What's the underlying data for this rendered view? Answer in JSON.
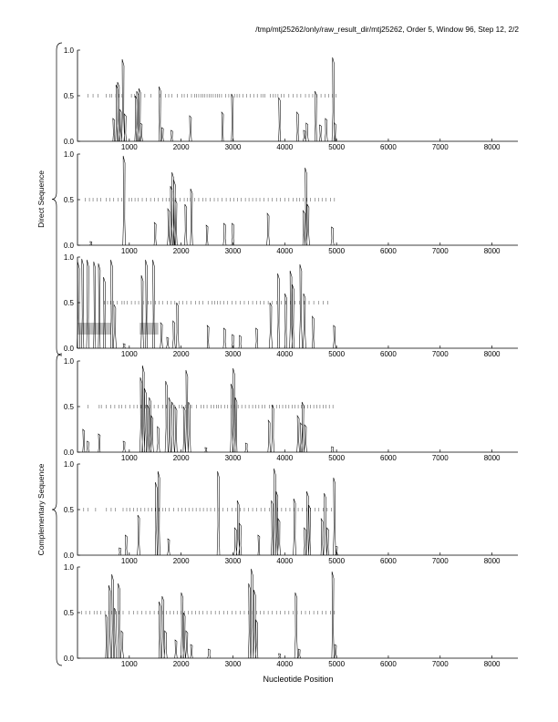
{
  "header": "/tmp/mtj25262/only/raw_result_dir/mtj25262, Order 5, Window 96, Step 12, 2/2",
  "xlabel": "Nucleotide Position",
  "groups": [
    {
      "label": "Direct Sequence",
      "panels": [
        0,
        1,
        2
      ]
    },
    {
      "label": "Complementary Sequence",
      "panels": [
        3,
        4,
        5
      ]
    }
  ],
  "chart_data": {
    "type": "line",
    "title": "/tmp/mtj25262/only/raw_result_dir/mtj25262, Order 5, Window 96, Step 12, 2/2",
    "xlabel": "Nucleotide Position",
    "ylabel": "",
    "xlim": [
      0,
      8500
    ],
    "ylim": [
      0,
      1
    ],
    "xticks": [
      1000,
      2000,
      3000,
      4000,
      5000,
      6000,
      7000,
      8000
    ],
    "yticks": [
      0.0,
      0.5,
      1.0
    ],
    "ytick_labels": [
      "0.0",
      "0.5",
      "1.0"
    ],
    "grid": false,
    "panels": [
      {
        "peaks": [
          [
            700,
            0.25
          ],
          [
            760,
            0.62
          ],
          [
            790,
            0.65
          ],
          [
            830,
            0.35
          ],
          [
            880,
            0.9
          ],
          [
            920,
            0.3
          ],
          [
            1130,
            0.5
          ],
          [
            1160,
            0.55
          ],
          [
            1200,
            0.58
          ],
          [
            1230,
            0.2
          ],
          [
            1590,
            0.6
          ],
          [
            1640,
            0.15
          ],
          [
            1820,
            0.12
          ],
          [
            2180,
            0.28
          ],
          [
            2800,
            0.32
          ],
          [
            2990,
            0.52
          ],
          [
            3900,
            0.48
          ],
          [
            4250,
            0.32
          ],
          [
            4380,
            0.12
          ],
          [
            4430,
            0.2
          ],
          [
            4600,
            0.55
          ],
          [
            4690,
            0.18
          ],
          [
            4800,
            0.25
          ],
          [
            4940,
            0.92
          ],
          [
            4970,
            0.2
          ]
        ],
        "dash_from": 0,
        "dash_to": 5000,
        "tick_marks": [
          200,
          300,
          400,
          550,
          620,
          660,
          740,
          800,
          860,
          1040,
          1100,
          1180,
          1300,
          1420,
          1600,
          1700,
          1760,
          1820,
          1930,
          2010,
          2060,
          2120,
          2200,
          2260,
          2300,
          2340,
          2380,
          2420,
          2460,
          2500,
          2540,
          2580,
          2620,
          2660,
          2700,
          2740,
          2780,
          2860,
          2920,
          2970,
          3030,
          3080,
          3130,
          3190,
          3260,
          3330,
          3400,
          3470,
          3540,
          3580,
          3620,
          3720,
          3780,
          3820,
          3870,
          3930,
          3990,
          4080,
          4160,
          4240,
          4310,
          4400,
          4470,
          4540,
          4620,
          4700,
          4780,
          4850,
          4920,
          4990
        ]
      },
      {
        "peaks": [
          [
            260,
            0.04
          ],
          [
            900,
            0.98
          ],
          [
            1500,
            0.25
          ],
          [
            1760,
            0.4
          ],
          [
            1810,
            0.65
          ],
          [
            1840,
            0.8
          ],
          [
            1870,
            0.72
          ],
          [
            1900,
            0.5
          ],
          [
            2090,
            0.45
          ],
          [
            2200,
            0.62
          ],
          [
            2500,
            0.22
          ],
          [
            2840,
            0.24
          ],
          [
            3000,
            0.24
          ],
          [
            3680,
            0.35
          ],
          [
            4370,
            0.38
          ],
          [
            4410,
            0.85
          ],
          [
            4450,
            0.45
          ],
          [
            4920,
            0.2
          ]
        ],
        "dash_from": 0,
        "dash_to": 5000,
        "tick_marks": [
          150,
          230,
          300,
          380,
          450,
          550,
          620,
          700,
          780,
          850,
          1000,
          1050,
          1110,
          1170,
          1250,
          1330,
          1410,
          1490,
          1560,
          1640,
          1710,
          1770,
          1830,
          1900,
          1980,
          2060,
          2120,
          2180,
          2260,
          2340,
          2420,
          2480,
          2560,
          2640,
          2710,
          2790,
          2870,
          2950,
          3020,
          3090,
          3160,
          3240,
          3310,
          3380,
          3450,
          3520,
          3600,
          3680,
          3760,
          3840,
          3920,
          4000,
          4080,
          4160,
          4230,
          4290,
          4360,
          4430,
          4500,
          4580,
          4650,
          4720,
          4800,
          4880,
          4960
        ]
      },
      {
        "peaks": [
          [
            20,
            0.95
          ],
          [
            100,
            0.98
          ],
          [
            200,
            0.97
          ],
          [
            330,
            0.95
          ],
          [
            420,
            0.93
          ],
          [
            520,
            0.78
          ],
          [
            660,
            0.97
          ],
          [
            720,
            0.48
          ],
          [
            900,
            0.05
          ],
          [
            1250,
            0.8
          ],
          [
            1330,
            0.97
          ],
          [
            1470,
            0.97
          ],
          [
            1620,
            0.28
          ],
          [
            1740,
            0.12
          ],
          [
            1860,
            0.3
          ],
          [
            1930,
            0.5
          ],
          [
            2520,
            0.25
          ],
          [
            2840,
            0.22
          ],
          [
            3000,
            0.15
          ],
          [
            3140,
            0.14
          ],
          [
            3460,
            0.22
          ],
          [
            3730,
            0.5
          ],
          [
            3880,
            0.82
          ],
          [
            4020,
            0.6
          ],
          [
            4120,
            0.85
          ],
          [
            4160,
            0.7
          ],
          [
            4310,
            0.92
          ],
          [
            4380,
            0.6
          ],
          [
            4550,
            0.35
          ],
          [
            4960,
            0.25
          ]
        ],
        "band1": [
          0,
          650,
          0.15,
          0.28
        ],
        "band2": [
          1200,
          1560,
          0.15,
          0.28
        ],
        "dash_from": 400,
        "dash_to": 4900,
        "tick_marks": [
          520,
          580,
          640,
          700,
          770,
          860,
          900,
          960,
          1040,
          1110,
          1180,
          1270,
          1360,
          1420,
          1500,
          1570,
          1640,
          1730,
          1810,
          1880,
          1960,
          2030,
          2110,
          2190,
          2280,
          2350,
          2420,
          2520,
          2600,
          2650,
          2700,
          2760,
          2820,
          2900,
          2980,
          3060,
          3140,
          3220,
          3300,
          3380,
          3460,
          3530,
          3600,
          3680,
          3760,
          3850,
          3930,
          4020,
          4110,
          4200,
          4290,
          4380,
          4470,
          4560,
          4650,
          4740,
          4830
        ]
      },
      {
        "peaks": [
          [
            120,
            0.25
          ],
          [
            200,
            0.12
          ],
          [
            420,
            0.2
          ],
          [
            900,
            0.12
          ],
          [
            1230,
            0.82
          ],
          [
            1270,
            0.95
          ],
          [
            1310,
            0.7
          ],
          [
            1360,
            0.52
          ],
          [
            1400,
            0.6
          ],
          [
            1440,
            0.4
          ],
          [
            1560,
            0.28
          ],
          [
            1720,
            0.78
          ],
          [
            1780,
            0.6
          ],
          [
            1840,
            0.55
          ],
          [
            1900,
            0.5
          ],
          [
            2060,
            0.5
          ],
          [
            2110,
            0.9
          ],
          [
            2160,
            0.55
          ],
          [
            2480,
            0.05
          ],
          [
            2980,
            0.75
          ],
          [
            3020,
            0.92
          ],
          [
            3060,
            0.6
          ],
          [
            3260,
            0.1
          ],
          [
            3700,
            0.35
          ],
          [
            3770,
            0.52
          ],
          [
            4260,
            0.4
          ],
          [
            4320,
            0.32
          ],
          [
            4350,
            0.55
          ],
          [
            4400,
            0.3
          ],
          [
            4920,
            0.06
          ]
        ],
        "dash_from": 0,
        "dash_to": 5000,
        "tick_marks": [
          200,
          420,
          460,
          550,
          640,
          720,
          800,
          850,
          930,
          1010,
          1090,
          1150,
          1230,
          1310,
          1390,
          1480,
          1560,
          1640,
          1720,
          1800,
          1880,
          1960,
          2020,
          2080,
          2140,
          2200,
          2300,
          2380,
          2440,
          2500,
          2580,
          2630,
          2680,
          2720,
          2770,
          2840,
          2900,
          2970,
          3030,
          3100,
          3170,
          3240,
          3310,
          3380,
          3440,
          3500,
          3560,
          3620,
          3700,
          3780,
          3840,
          3900,
          3960,
          4020,
          4080,
          4140,
          4200,
          4260,
          4320,
          4380,
          4440,
          4500,
          4560,
          4620,
          4680,
          4740,
          4800,
          4860,
          4930
        ]
      },
      {
        "peaks": [
          [
            820,
            0.08
          ],
          [
            940,
            0.22
          ],
          [
            1180,
            0.44
          ],
          [
            1520,
            0.8
          ],
          [
            1570,
            0.92
          ],
          [
            1760,
            0.18
          ],
          [
            2720,
            0.92
          ],
          [
            3050,
            0.3
          ],
          [
            3100,
            0.6
          ],
          [
            3140,
            0.35
          ],
          [
            3500,
            0.22
          ],
          [
            3760,
            0.6
          ],
          [
            3810,
            0.95
          ],
          [
            3850,
            0.7
          ],
          [
            3890,
            0.4
          ],
          [
            4190,
            0.62
          ],
          [
            4390,
            0.3
          ],
          [
            4440,
            0.7
          ],
          [
            4480,
            0.55
          ],
          [
            4720,
            0.4
          ],
          [
            4780,
            0.68
          ],
          [
            4830,
            0.3
          ],
          [
            4960,
            0.85
          ],
          [
            5000,
            0.1
          ]
        ],
        "dash_from": 0,
        "dash_to": 5000,
        "tick_marks": [
          120,
          200,
          350,
          560,
          650,
          730,
          880,
          950,
          1010,
          1080,
          1150,
          1220,
          1300,
          1370,
          1430,
          1500,
          1570,
          1640,
          1700,
          1770,
          1860,
          1940,
          2010,
          2080,
          2150,
          2220,
          2290,
          2360,
          2430,
          2500,
          2570,
          2650,
          2730,
          2810,
          2900,
          2980,
          3060,
          3140,
          3220,
          3300,
          3380,
          3460,
          3540,
          3620,
          3700,
          3780,
          3860,
          3940,
          4020,
          4100,
          4180,
          4260,
          4340,
          4420,
          4500,
          4580,
          4660,
          4740,
          4820,
          4900
        ]
      },
      {
        "peaks": [
          [
            560,
            0.48
          ],
          [
            620,
            0.8
          ],
          [
            680,
            0.92
          ],
          [
            730,
            0.55
          ],
          [
            800,
            0.82
          ],
          [
            860,
            0.3
          ],
          [
            1590,
            0.62
          ],
          [
            1650,
            0.68
          ],
          [
            1700,
            0.3
          ],
          [
            1900,
            0.2
          ],
          [
            2020,
            0.72
          ],
          [
            2060,
            0.5
          ],
          [
            2110,
            0.3
          ],
          [
            2200,
            0.15
          ],
          [
            2540,
            0.1
          ],
          [
            3320,
            0.82
          ],
          [
            3370,
            0.98
          ],
          [
            3420,
            0.75
          ],
          [
            3460,
            0.42
          ],
          [
            3900,
            0.05
          ],
          [
            4220,
            0.72
          ],
          [
            4280,
            0.1
          ],
          [
            4930,
            0.95
          ],
          [
            4980,
            0.15
          ]
        ],
        "dash_from": 0,
        "dash_to": 5000,
        "tick_marks": [
          80,
          160,
          240,
          320,
          380,
          450,
          530,
          600,
          660,
          730,
          800,
          880,
          1000,
          1080,
          1160,
          1240,
          1320,
          1400,
          1480,
          1560,
          1640,
          1720,
          1790,
          1860,
          1930,
          2000,
          2070,
          2140,
          2210,
          2280,
          2350,
          2420,
          2500,
          2580,
          2660,
          2740,
          2820,
          2900,
          2980,
          3060,
          3140,
          3220,
          3300,
          3380,
          3460,
          3530,
          3600,
          3680,
          3760,
          3840,
          3920,
          4000,
          4080,
          4160,
          4240,
          4320,
          4400,
          4480,
          4560,
          4640,
          4720,
          4800,
          4880,
          4960
        ]
      }
    ]
  }
}
